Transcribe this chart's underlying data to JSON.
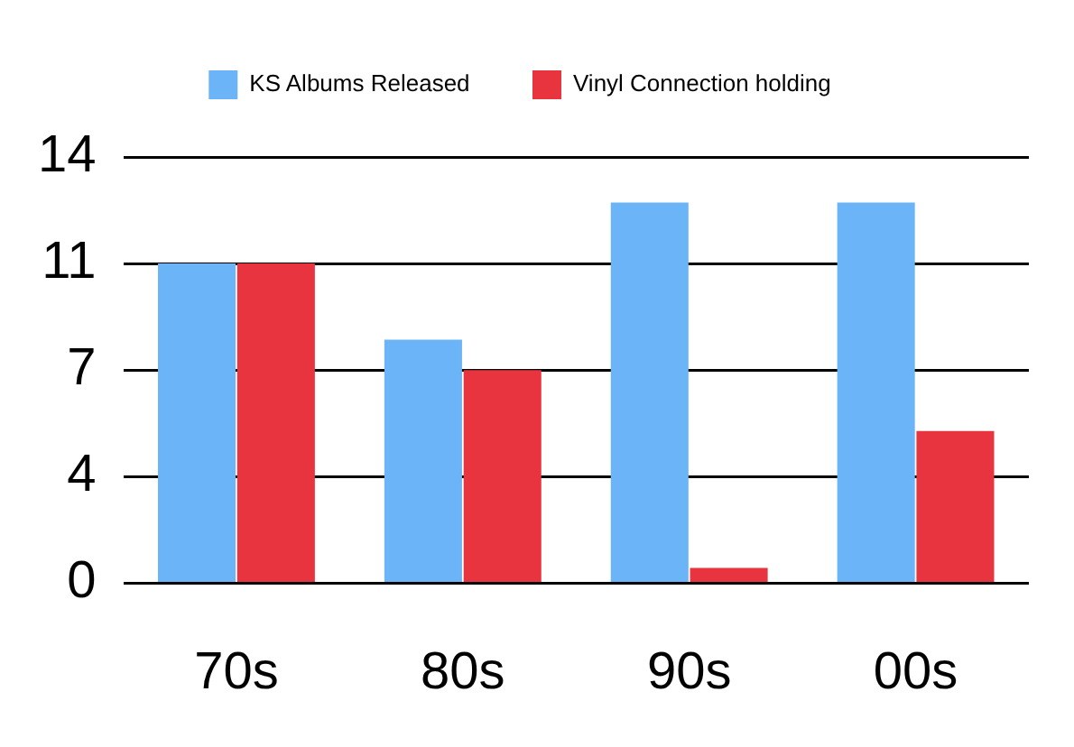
{
  "chart_data": {
    "type": "bar",
    "categories": [
      "70s",
      "80s",
      "90s",
      "00s"
    ],
    "series": [
      {
        "name": "KS Albums Released",
        "color": "#6cb4f8",
        "values": [
          10.5,
          8,
          12.5,
          12.5
        ]
      },
      {
        "name": "Vinyl Connection holding",
        "color": "#e8343e",
        "values": [
          10.5,
          7,
          0.5,
          5
        ]
      }
    ],
    "ylim": [
      0,
      14
    ],
    "yticks": [
      0,
      {
        "value": 3.5,
        "label": "4"
      },
      7,
      {
        "value": 10.5,
        "label": "11"
      },
      14
    ],
    "grid": "y",
    "legend": "top"
  }
}
